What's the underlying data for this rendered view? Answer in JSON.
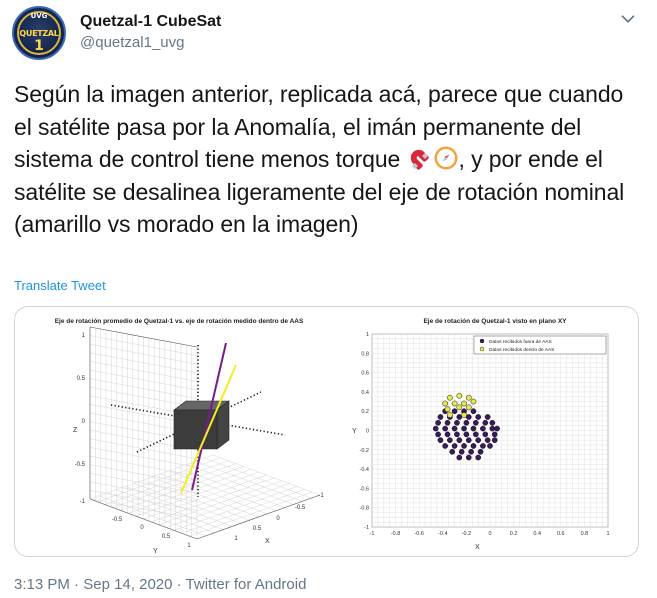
{
  "tweet": {
    "author_name": "Quetzal-1 CubeSat",
    "handle": "@quetzal1_uvg",
    "avatar": {
      "top_label": "UVG",
      "name_label": "QUETZAL",
      "number_label": "1"
    },
    "text_part1": "Según la imagen anterior, replicada acá, parece que cuando el satélite pasa por la Anomalía, el imán permanente del sistema de control tiene menos torque ",
    "text_part2": ", y por ende el satélite se desalinea ligeramente del eje de rotación nominal (amarillo vs morado en la imagen)",
    "emojis": [
      "magnet-emoji",
      "compass-emoji"
    ],
    "translate_label": "Translate Tweet",
    "time": "3:13 PM",
    "date": "Sep 14, 2020",
    "source": "Twitter for Android",
    "separator": " · "
  },
  "figure": {
    "left_title": "Eje de rotación promedio de Quetzal-1 vs. eje de rotación medido dentro de AAS",
    "right_title": "Eje de rotación de Quetzal-1 visto en plano XY",
    "left_axes": {
      "z_label": "Z",
      "x_label": "X",
      "y_label": "Y",
      "z_ticks": [
        "1",
        "0.5",
        "0",
        "-0.5",
        "-1"
      ],
      "x_ticks": [
        "-1",
        "-0.5",
        "0",
        "0.5",
        "1"
      ],
      "y_ticks": [
        "-0.5",
        "0",
        "0.5",
        "1"
      ]
    },
    "right_axes": {
      "x_label": "X",
      "y_label": "Y",
      "x_ticks": [
        "-1",
        "-0.8",
        "-0.6",
        "-0.4",
        "-0.2",
        "0",
        "0.2",
        "0.4",
        "0.6",
        "0.8",
        "1"
      ],
      "y_ticks": [
        "1",
        "0.8",
        "0.6",
        "0.4",
        "0.2",
        "0",
        "-0.2",
        "-0.4",
        "-0.6",
        "-0.8",
        "-1"
      ],
      "xlim": [
        -1,
        1
      ],
      "ylim": [
        -1,
        1
      ]
    },
    "legend": [
      "Datos recibidos fuera de AAS",
      "Datos recibidos dentro de AAS"
    ],
    "colors": {
      "outside": "#3a1a5a",
      "inside": "#e8e84a",
      "yellow_axis": "#f0f020",
      "purple_axis": "#7a1a8a"
    }
  },
  "chart_data": {
    "type": "scatter",
    "title": "Eje de rotación de Quetzal-1 visto en plano XY",
    "xlabel": "X",
    "ylabel": "Y",
    "xlim": [
      -1,
      1
    ],
    "ylim": [
      -1,
      1
    ],
    "grid": true,
    "legend_position": "top-right",
    "series": [
      {
        "name": "Datos recibidos fuera de AAS",
        "color": "#3a1a5a",
        "points": [
          [
            -0.38,
            0.2
          ],
          [
            -0.3,
            0.2
          ],
          [
            -0.22,
            0.2
          ],
          [
            -0.14,
            0.2
          ],
          [
            -0.42,
            0.14
          ],
          [
            -0.34,
            0.14
          ],
          [
            -0.26,
            0.14
          ],
          [
            -0.18,
            0.14
          ],
          [
            -0.1,
            0.14
          ],
          [
            -0.02,
            0.14
          ],
          [
            -0.44,
            0.08
          ],
          [
            -0.36,
            0.08
          ],
          [
            -0.28,
            0.08
          ],
          [
            -0.2,
            0.08
          ],
          [
            -0.12,
            0.08
          ],
          [
            -0.04,
            0.08
          ],
          [
            0.02,
            0.08
          ],
          [
            -0.46,
            0.02
          ],
          [
            -0.38,
            0.02
          ],
          [
            -0.3,
            0.02
          ],
          [
            -0.22,
            0.02
          ],
          [
            -0.14,
            0.02
          ],
          [
            -0.06,
            0.02
          ],
          [
            0.02,
            0.02
          ],
          [
            0.06,
            0.02
          ],
          [
            -0.44,
            -0.04
          ],
          [
            -0.36,
            -0.04
          ],
          [
            -0.28,
            -0.04
          ],
          [
            -0.2,
            -0.04
          ],
          [
            -0.12,
            -0.04
          ],
          [
            -0.04,
            -0.04
          ],
          [
            0.04,
            -0.04
          ],
          [
            -0.42,
            -0.1
          ],
          [
            -0.34,
            -0.1
          ],
          [
            -0.26,
            -0.1
          ],
          [
            -0.18,
            -0.1
          ],
          [
            -0.1,
            -0.1
          ],
          [
            -0.02,
            -0.1
          ],
          [
            0.04,
            -0.1
          ],
          [
            -0.38,
            -0.16
          ],
          [
            -0.3,
            -0.16
          ],
          [
            -0.22,
            -0.16
          ],
          [
            -0.14,
            -0.16
          ],
          [
            -0.06,
            -0.16
          ],
          [
            0.0,
            -0.16
          ],
          [
            -0.32,
            -0.22
          ],
          [
            -0.24,
            -0.22
          ],
          [
            -0.16,
            -0.22
          ],
          [
            -0.08,
            -0.22
          ],
          [
            -0.26,
            -0.28
          ],
          [
            -0.18,
            -0.28
          ],
          [
            -0.1,
            -0.28
          ]
        ]
      },
      {
        "name": "Datos recibidos dentro de AAS",
        "color": "#e8e84a",
        "points": [
          [
            -0.34,
            0.34
          ],
          [
            -0.26,
            0.36
          ],
          [
            -0.18,
            0.34
          ],
          [
            -0.38,
            0.28
          ],
          [
            -0.3,
            0.28
          ],
          [
            -0.22,
            0.28
          ],
          [
            -0.14,
            0.3
          ],
          [
            -0.36,
            0.22
          ],
          [
            -0.26,
            0.24
          ],
          [
            -0.18,
            0.24
          ],
          [
            -0.34,
            0.16
          ],
          [
            -0.22,
            0.16
          ]
        ]
      }
    ]
  }
}
